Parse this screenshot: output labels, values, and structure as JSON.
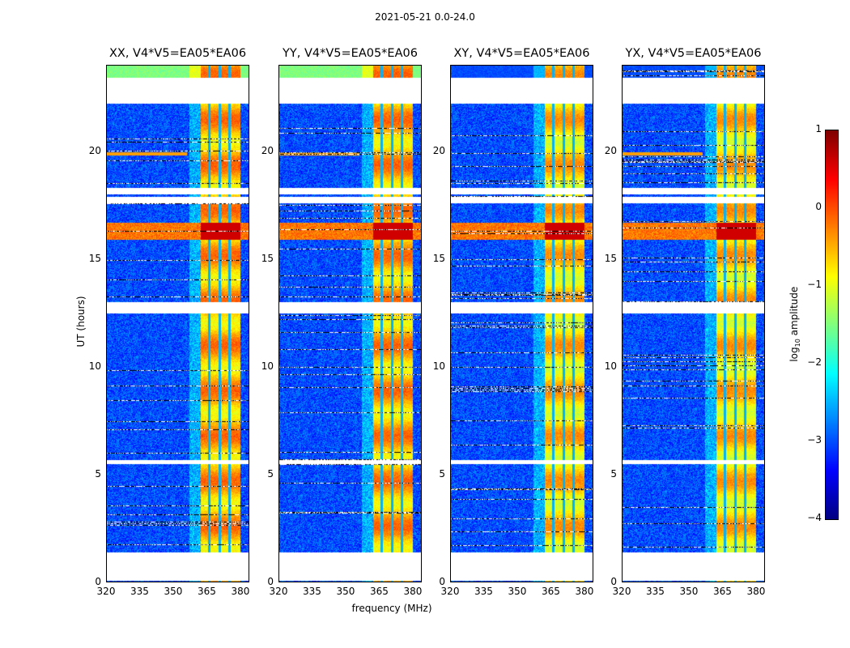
{
  "chart_data": {
    "type": "heatmap",
    "suptitle": "2021-05-21 0.0-24.0",
    "xlabel": "frequency (MHz)",
    "ylabel": "UT (hours)",
    "xlim": [
      320,
      384
    ],
    "ylim": [
      0,
      24
    ],
    "xticks": [
      320,
      335,
      350,
      365,
      380
    ],
    "yticks": [
      0,
      5,
      10,
      15,
      20
    ],
    "panels": [
      {
        "title": "XX, V4*V5=EA05*EA06",
        "top_band_level": -1.5
      },
      {
        "title": "YY, V4*V5=EA05*EA06",
        "top_band_level": -1.5
      },
      {
        "title": "XY, V4*V5=EA05*EA06",
        "top_band_level": -3
      },
      {
        "title": "YX, V4*V5=EA05*EA06",
        "top_band_level": -3
      }
    ],
    "flagged_time_ranges": [
      [
        0.1,
        1.4
      ],
      [
        5.5,
        5.7
      ],
      [
        12.5,
        13.0
      ],
      [
        17.6,
        17.9
      ],
      [
        18.0,
        18.3
      ],
      [
        22.2,
        23.4
      ]
    ],
    "rfi_band_mhz": [
      362,
      380
    ],
    "rfi_gap_channels_mhz": [
      366,
      370.5,
      375
    ],
    "strong_time_band_hours": [
      15.9,
      16.7
    ],
    "colorbar": {
      "label": "log10 amplitude",
      "label_main": "log",
      "label_sub": "10",
      "label_rest": " amplitude",
      "range": [
        -4,
        1
      ],
      "ticks": [
        "1",
        "0",
        "−1",
        "−2",
        "−3",
        "−4"
      ],
      "colormap": "jet"
    }
  }
}
